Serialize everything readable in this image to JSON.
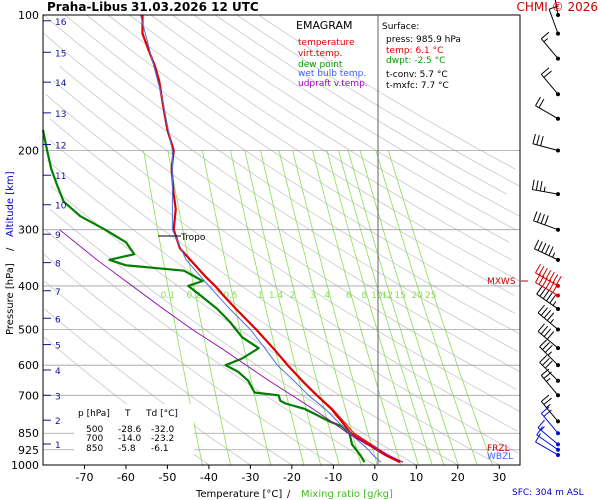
{
  "header": {
    "station": "Praha-Libus",
    "datetime": "31.03.2026 12 UTC",
    "copyright": "CHMI © 2026"
  },
  "legend": {
    "title": "EMAGRAM",
    "items": [
      {
        "label": "temperature",
        "color": "#e00000"
      },
      {
        "label": "virt.temp.",
        "color": "#e00000"
      },
      {
        "label": "dew point",
        "color": "#00a000"
      },
      {
        "label": "wet bulb temp.",
        "color": "#4060ff"
      },
      {
        "label": "udpraft v.temp.",
        "color": "#a000c0"
      }
    ]
  },
  "surface": {
    "title": "Surface:",
    "press": "press: 985.9 hPa",
    "temp": "temp: 6.1 °C",
    "dwpt": "dwpt: -2.5 °C",
    "tconv": "t-conv: 5.7 °C",
    "tmxfc": "t-mxfc: 7.7 °C"
  },
  "table": {
    "headers": [
      "p [hPa]",
      "T",
      "Td [°C]"
    ],
    "rows": [
      [
        "500",
        "-28.6",
        "-32.0"
      ],
      [
        "700",
        "-14.0",
        "-23.2"
      ],
      [
        "850",
        "-5.8",
        "-6.1"
      ]
    ]
  },
  "labels": {
    "tropo": "Tropo",
    "mxws": "MXWS",
    "wbzl": "WBZL",
    "frzl": "FRZL",
    "sfc": "SFC: 304 m ASL",
    "xlabel_temp": "Temperature [°C]",
    "xlabel_sep": "/",
    "xlabel_mix": "Mixing ratio [g/kg]",
    "ylabel_p": "Pressure [hPa]",
    "ylabel_sep": "/",
    "ylabel_alt": "Altitude [km]"
  },
  "colors": {
    "temperature": "#e00000",
    "dewpoint": "#008000",
    "wetbulb": "#5070e0",
    "parcel": "#9000b0",
    "mixing": "#88dd55",
    "dryadiabat": "#c8c8c8",
    "isobar": "#a0a0a0",
    "altitude": "#1010a0",
    "wind": "#000000",
    "wind_mxws": "#d00000",
    "wind_low": "#0010d0"
  },
  "chart_data": {
    "type": "line",
    "title": "EMAGRAM",
    "xlabel": "Temperature [°C] / Mixing ratio [g/kg]",
    "ylabel": "Pressure [hPa] / Altitude [km]",
    "xlim": [
      -80,
      35
    ],
    "ylim": [
      1000,
      100
    ],
    "y_scale": "log",
    "x_ticks": [
      -70,
      -60,
      -50,
      -40,
      -30,
      -20,
      -10,
      0,
      10,
      20,
      30
    ],
    "y_ticks": [
      100,
      200,
      300,
      400,
      500,
      600,
      700,
      850,
      925,
      1000
    ],
    "altitude_ticks_km": [
      1,
      2,
      3,
      4,
      5,
      6,
      7,
      8,
      9,
      10,
      11,
      12,
      13,
      14,
      15,
      16
    ],
    "altitude_pressure": [
      898,
      795,
      700,
      615,
      540,
      472,
      410,
      355,
      307,
      264,
      227,
      194,
      165,
      141,
      121,
      103
    ],
    "mixing_ratio_labels": [
      "0.1",
      "0.2",
      "0.5",
      "1",
      "1.4",
      "2",
      "3",
      "4",
      "6",
      "8",
      "10",
      "12",
      "15",
      "20",
      "25"
    ],
    "mixing_ratio_values": [
      0.1,
      0.2,
      0.5,
      1,
      1.4,
      2,
      3,
      4,
      6,
      8,
      10,
      12,
      15,
      20,
      25
    ],
    "tropopause_hpa": 300,
    "series": [
      {
        "name": "temperature",
        "p": [
          986,
          950,
          925,
          900,
          850,
          800,
          750,
          700,
          650,
          600,
          550,
          500,
          450,
          420,
          400,
          380,
          350,
          330,
          300,
          270,
          250,
          220,
          200,
          180,
          160,
          140,
          130,
          120,
          110,
          100
        ],
        "t": [
          6.1,
          2.5,
          0.5,
          -1.5,
          -5.8,
          -8.0,
          -10.5,
          -14.0,
          -17.5,
          -21.0,
          -24.5,
          -28.6,
          -33.5,
          -36.5,
          -38.5,
          -41.0,
          -44.5,
          -47.0,
          -48.5,
          -48.0,
          -48.5,
          -49.0,
          -48.5,
          -50.0,
          -51.0,
          -52.0,
          -53.0,
          -54.5,
          -56.0,
          -56.0
        ]
      },
      {
        "name": "virt.temp.",
        "p": [
          986,
          950,
          925,
          900,
          850,
          800,
          750,
          700,
          650,
          600,
          550,
          500,
          450,
          420,
          400,
          380,
          350,
          330,
          300,
          270,
          250,
          220,
          200,
          180,
          160,
          140,
          130,
          120,
          110,
          100
        ],
        "t": [
          6.8,
          3.2,
          1.2,
          -0.8,
          -5.0,
          -7.5,
          -10.2,
          -13.8,
          -17.4,
          -20.9,
          -24.4,
          -28.5,
          -33.4,
          -36.4,
          -38.4,
          -40.9,
          -44.4,
          -46.9,
          -48.4,
          -47.9,
          -48.4,
          -48.9,
          -48.4,
          -49.9,
          -50.9,
          -51.9,
          -52.9,
          -54.4,
          -55.9,
          -55.9
        ]
      },
      {
        "name": "dew point",
        "p": [
          986,
          950,
          925,
          900,
          850,
          820,
          800,
          770,
          750,
          730,
          720,
          700,
          690,
          650,
          620,
          600,
          580,
          550,
          520,
          500,
          480,
          450,
          420,
          400,
          390,
          370,
          360,
          350,
          340,
          320,
          300,
          280,
          260,
          240,
          220,
          200,
          180,
          160,
          150,
          140
        ],
        "t": [
          -2.5,
          -3.5,
          -4.5,
          -5.5,
          -6.1,
          -8.0,
          -11.0,
          -14.5,
          -17.0,
          -21.5,
          -22.8,
          -23.2,
          -29.0,
          -30.5,
          -33.0,
          -36.0,
          -32.0,
          -28.0,
          -32.0,
          -33.5,
          -35.0,
          -38.0,
          -42.0,
          -45.0,
          -41.5,
          -46.0,
          -60.0,
          -64.0,
          -58.0,
          -60.0,
          -65.0,
          -71.0,
          -75.0,
          -76.5,
          -78.0,
          -79.0,
          -80.0,
          -82.0,
          -84.0,
          -86.0
        ]
      },
      {
        "name": "wet bulb temp.",
        "p": [
          986,
          950,
          925,
          900,
          850,
          800,
          750,
          700,
          650,
          600,
          550,
          500,
          450,
          400,
          350,
          300,
          250,
          200,
          150,
          100
        ],
        "t": [
          1.5,
          -0.5,
          -1.5,
          -3.0,
          -6.0,
          -9.0,
          -12.0,
          -16.0,
          -19.5,
          -23.5,
          -26.5,
          -30.0,
          -35.0,
          -40.0,
          -45.5,
          -48.8,
          -48.8,
          -48.8,
          -51.5,
          -56.5
        ]
      },
      {
        "name": "udpraft v.temp.",
        "p": [
          986,
          950,
          900,
          850,
          800,
          750,
          700,
          650,
          600,
          550,
          500,
          450,
          400,
          350,
          300
        ],
        "t": [
          6.8,
          3.0,
          -2.0,
          -6.5,
          -10.5,
          -15.0,
          -20.0,
          -25.5,
          -31.0,
          -37.0,
          -44.0,
          -51.0,
          -58.5,
          -67.0,
          -76.0
        ]
      }
    ],
    "wind_barbs": [
      {
        "p": 950,
        "dir": 300,
        "speed": 10
      },
      {
        "p": 925,
        "dir": 305,
        "speed": 10
      },
      {
        "p": 900,
        "dir": 310,
        "speed": 15
      },
      {
        "p": 850,
        "dir": 320,
        "speed": 20
      },
      {
        "p": 800,
        "dir": 320,
        "speed": 25
      },
      {
        "p": 700,
        "dir": 320,
        "speed": 25
      },
      {
        "p": 650,
        "dir": 315,
        "speed": 30
      },
      {
        "p": 600,
        "dir": 315,
        "speed": 35
      },
      {
        "p": 550,
        "dir": 310,
        "speed": 40
      },
      {
        "p": 500,
        "dir": 310,
        "speed": 45
      },
      {
        "p": 450,
        "dir": 305,
        "speed": 55
      },
      {
        "p": 420,
        "dir": 300,
        "speed": 60
      },
      {
        "p": 400,
        "dir": 300,
        "speed": 70
      },
      {
        "p": 350,
        "dir": 295,
        "speed": 55
      },
      {
        "p": 300,
        "dir": 290,
        "speed": 40
      },
      {
        "p": 250,
        "dir": 280,
        "speed": 35
      },
      {
        "p": 200,
        "dir": 285,
        "speed": 30
      },
      {
        "p": 170,
        "dir": 300,
        "speed": 20
      },
      {
        "p": 150,
        "dir": 320,
        "speed": 20
      },
      {
        "p": 125,
        "dir": 320,
        "speed": 15
      },
      {
        "p": 110,
        "dir": 340,
        "speed": 10
      },
      {
        "p": 100,
        "dir": 350,
        "speed": 10
      }
    ],
    "grid": true
  }
}
